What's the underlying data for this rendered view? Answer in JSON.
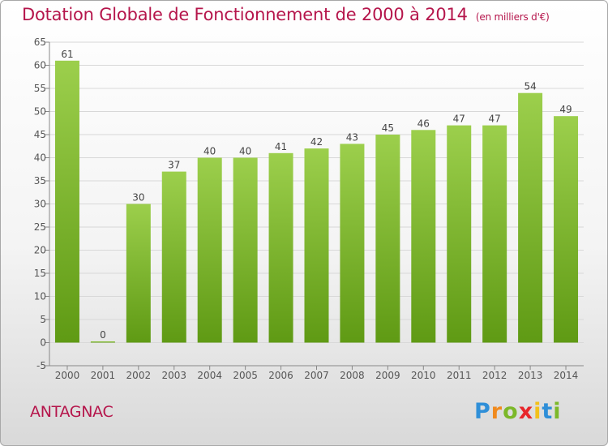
{
  "title": "Dotation Globale de Fonctionnement de 2000 à 2014",
  "subtitle": "(en milliers d'€)",
  "commune": "ANTAGNAC",
  "logo_text": "Proxiti",
  "colors": {
    "title": "#b5154b",
    "bar_top": "#9ccf4c",
    "bar_bottom": "#5f9a14",
    "grid": "#d8d8d8"
  },
  "chart_data": {
    "type": "bar",
    "categories": [
      "2000",
      "2001",
      "2002",
      "2003",
      "2004",
      "2005",
      "2006",
      "2007",
      "2008",
      "2009",
      "2010",
      "2011",
      "2012",
      "2013",
      "2014"
    ],
    "values": [
      61,
      0,
      30,
      37,
      40,
      40,
      41,
      42,
      43,
      45,
      46,
      47,
      47,
      54,
      49
    ],
    "ylim": [
      -5,
      65
    ],
    "yticks": [
      -5,
      0,
      5,
      10,
      15,
      20,
      25,
      30,
      35,
      40,
      45,
      50,
      55,
      60,
      65
    ],
    "grid": true,
    "legend": "none"
  }
}
